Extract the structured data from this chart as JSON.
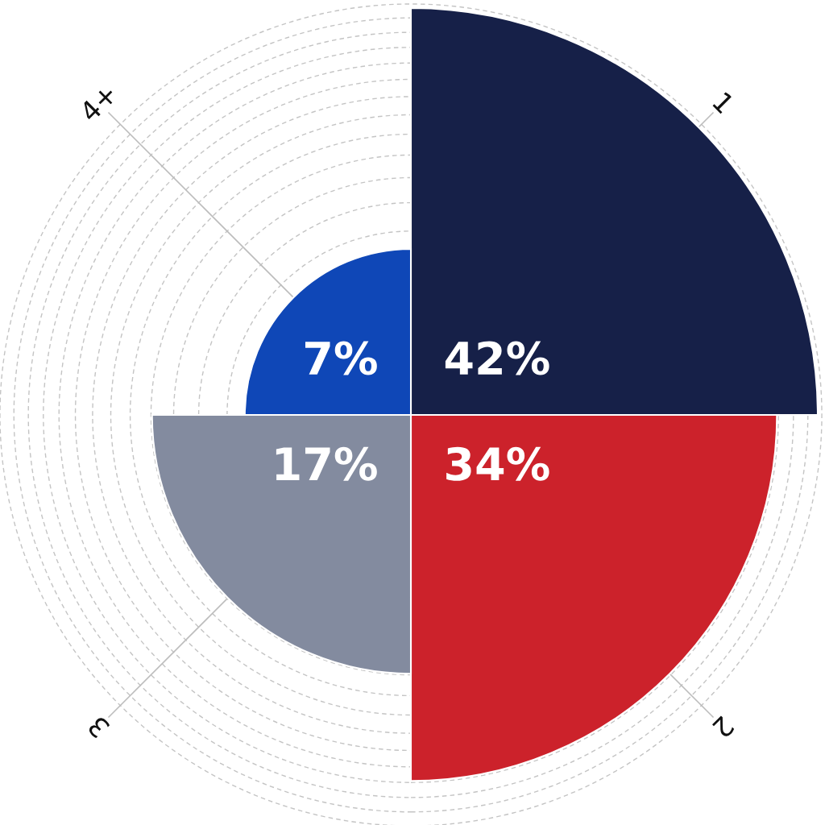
{
  "chart_data": {
    "type": "other",
    "categories": [
      "1",
      "2",
      "3",
      "4+"
    ],
    "values": [
      42,
      34,
      17,
      7
    ],
    "colors": [
      "#162048",
      "#cc222b",
      "#838b9f",
      "#0f47b7"
    ],
    "value_labels": [
      "42%",
      "34%",
      "17%",
      "7%"
    ]
  }
}
